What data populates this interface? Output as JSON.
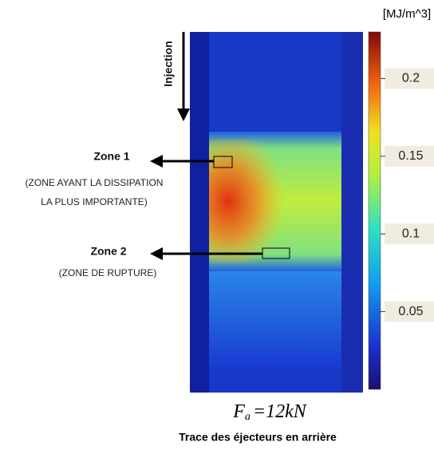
{
  "chart_data": {
    "type": "heatmap",
    "colorbar": {
      "label": "[MJ/m^3]",
      "lim": [
        0,
        0.23
      ],
      "ticks": [
        0.05,
        0.1,
        0.15,
        0.2
      ]
    },
    "annotations": {
      "injection": "Injection",
      "zone1": "Zone 1",
      "zone1_note_1": "(ZONE AYANT  LA DISSIPATION",
      "zone1_note_2": "LA PLUS IMPORTANTE)",
      "zone2": "Zone 2",
      "zone2_note": "(ZONE DE RUPTURE)"
    },
    "formula": {
      "symbol": "F",
      "subscript": "a",
      "rhs": "=12kN"
    },
    "caption": "Trace des éjecteurs en arrière"
  }
}
